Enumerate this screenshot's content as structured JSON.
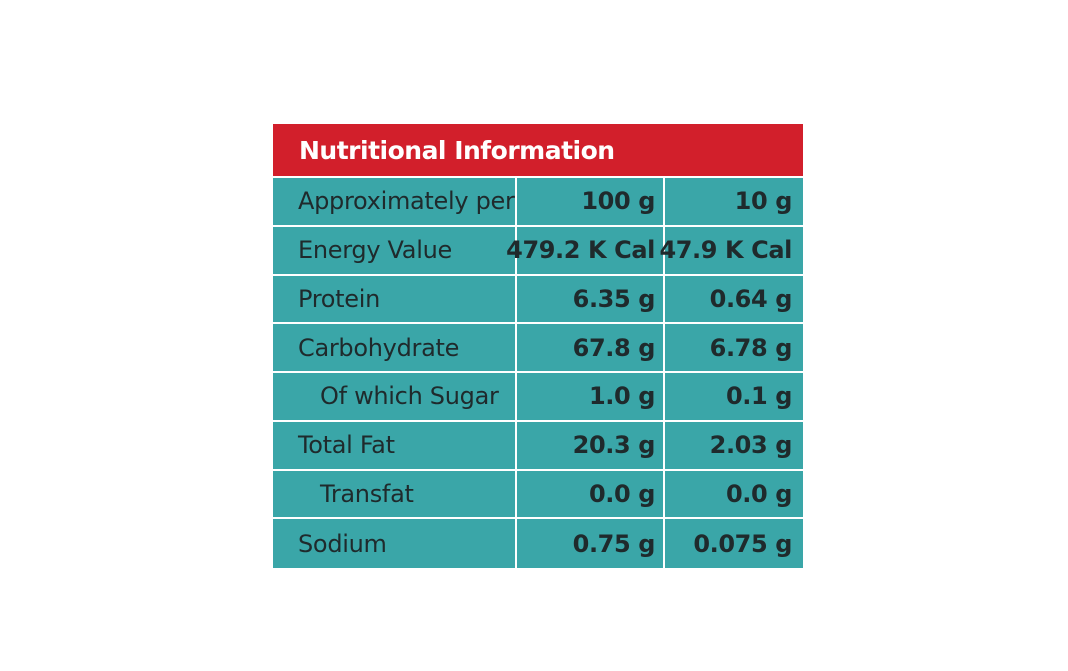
{
  "title": "Nutritional Information",
  "rows": [
    {
      "label": "Approximately per",
      "v100": "100 g",
      "v10": "10 g"
    },
    {
      "label": "Energy Value",
      "v100": "479.2 K Cal",
      "v10": "47.9 K Cal"
    },
    {
      "label": "Protein",
      "v100": "6.35 g",
      "v10": "0.64 g"
    },
    {
      "label": "Carbohydrate",
      "v100": "67.8 g",
      "v10": "6.78 g"
    },
    {
      "label": "Of which Sugar",
      "v100": "1.0 g",
      "v10": "0.1 g"
    },
    {
      "label": "Total Fat",
      "v100": "20.3 g",
      "v10": "2.03 g"
    },
    {
      "label": "Transfat",
      "v100": "0.0 g",
      "v10": "0.0 g"
    },
    {
      "label": "Sodium",
      "v100": "0.75 g",
      "v10": "0.075 g"
    }
  ],
  "colors": {
    "header": "#d21f2b",
    "panel": "#3aa6a8",
    "text": "#1f2a2c",
    "header_text": "#ffffff"
  }
}
